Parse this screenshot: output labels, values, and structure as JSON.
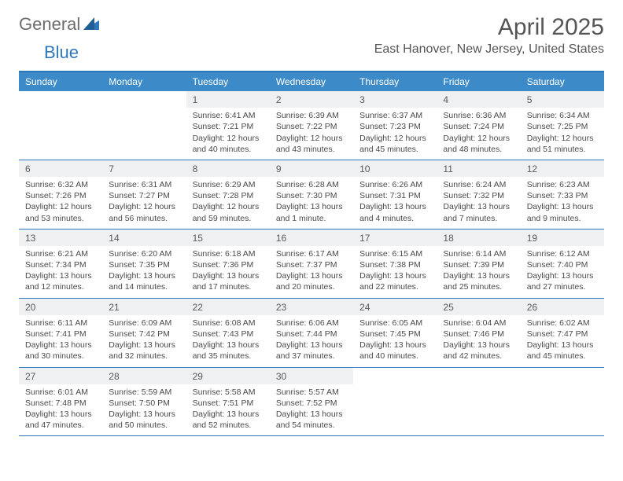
{
  "brand": {
    "part1": "General",
    "part2": "Blue"
  },
  "title": "April 2025",
  "location": "East Hanover, New Jersey, United States",
  "colors": {
    "header_bg": "#3c8ac7",
    "header_border": "#2f77bb",
    "daynum_bg": "#eef0f1",
    "text": "#4a4a4a",
    "title_text": "#555555",
    "logo_gray": "#6d6d6d",
    "logo_blue": "#2f77bb"
  },
  "day_names": [
    "Sunday",
    "Monday",
    "Tuesday",
    "Wednesday",
    "Thursday",
    "Friday",
    "Saturday"
  ],
  "weeks": [
    [
      null,
      null,
      {
        "d": "1",
        "sr": "Sunrise: 6:41 AM",
        "ss": "Sunset: 7:21 PM",
        "dl1": "Daylight: 12 hours",
        "dl2": "and 40 minutes."
      },
      {
        "d": "2",
        "sr": "Sunrise: 6:39 AM",
        "ss": "Sunset: 7:22 PM",
        "dl1": "Daylight: 12 hours",
        "dl2": "and 43 minutes."
      },
      {
        "d": "3",
        "sr": "Sunrise: 6:37 AM",
        "ss": "Sunset: 7:23 PM",
        "dl1": "Daylight: 12 hours",
        "dl2": "and 45 minutes."
      },
      {
        "d": "4",
        "sr": "Sunrise: 6:36 AM",
        "ss": "Sunset: 7:24 PM",
        "dl1": "Daylight: 12 hours",
        "dl2": "and 48 minutes."
      },
      {
        "d": "5",
        "sr": "Sunrise: 6:34 AM",
        "ss": "Sunset: 7:25 PM",
        "dl1": "Daylight: 12 hours",
        "dl2": "and 51 minutes."
      }
    ],
    [
      {
        "d": "6",
        "sr": "Sunrise: 6:32 AM",
        "ss": "Sunset: 7:26 PM",
        "dl1": "Daylight: 12 hours",
        "dl2": "and 53 minutes."
      },
      {
        "d": "7",
        "sr": "Sunrise: 6:31 AM",
        "ss": "Sunset: 7:27 PM",
        "dl1": "Daylight: 12 hours",
        "dl2": "and 56 minutes."
      },
      {
        "d": "8",
        "sr": "Sunrise: 6:29 AM",
        "ss": "Sunset: 7:28 PM",
        "dl1": "Daylight: 12 hours",
        "dl2": "and 59 minutes."
      },
      {
        "d": "9",
        "sr": "Sunrise: 6:28 AM",
        "ss": "Sunset: 7:30 PM",
        "dl1": "Daylight: 13 hours",
        "dl2": "and 1 minute."
      },
      {
        "d": "10",
        "sr": "Sunrise: 6:26 AM",
        "ss": "Sunset: 7:31 PM",
        "dl1": "Daylight: 13 hours",
        "dl2": "and 4 minutes."
      },
      {
        "d": "11",
        "sr": "Sunrise: 6:24 AM",
        "ss": "Sunset: 7:32 PM",
        "dl1": "Daylight: 13 hours",
        "dl2": "and 7 minutes."
      },
      {
        "d": "12",
        "sr": "Sunrise: 6:23 AM",
        "ss": "Sunset: 7:33 PM",
        "dl1": "Daylight: 13 hours",
        "dl2": "and 9 minutes."
      }
    ],
    [
      {
        "d": "13",
        "sr": "Sunrise: 6:21 AM",
        "ss": "Sunset: 7:34 PM",
        "dl1": "Daylight: 13 hours",
        "dl2": "and 12 minutes."
      },
      {
        "d": "14",
        "sr": "Sunrise: 6:20 AM",
        "ss": "Sunset: 7:35 PM",
        "dl1": "Daylight: 13 hours",
        "dl2": "and 14 minutes."
      },
      {
        "d": "15",
        "sr": "Sunrise: 6:18 AM",
        "ss": "Sunset: 7:36 PM",
        "dl1": "Daylight: 13 hours",
        "dl2": "and 17 minutes."
      },
      {
        "d": "16",
        "sr": "Sunrise: 6:17 AM",
        "ss": "Sunset: 7:37 PM",
        "dl1": "Daylight: 13 hours",
        "dl2": "and 20 minutes."
      },
      {
        "d": "17",
        "sr": "Sunrise: 6:15 AM",
        "ss": "Sunset: 7:38 PM",
        "dl1": "Daylight: 13 hours",
        "dl2": "and 22 minutes."
      },
      {
        "d": "18",
        "sr": "Sunrise: 6:14 AM",
        "ss": "Sunset: 7:39 PM",
        "dl1": "Daylight: 13 hours",
        "dl2": "and 25 minutes."
      },
      {
        "d": "19",
        "sr": "Sunrise: 6:12 AM",
        "ss": "Sunset: 7:40 PM",
        "dl1": "Daylight: 13 hours",
        "dl2": "and 27 minutes."
      }
    ],
    [
      {
        "d": "20",
        "sr": "Sunrise: 6:11 AM",
        "ss": "Sunset: 7:41 PM",
        "dl1": "Daylight: 13 hours",
        "dl2": "and 30 minutes."
      },
      {
        "d": "21",
        "sr": "Sunrise: 6:09 AM",
        "ss": "Sunset: 7:42 PM",
        "dl1": "Daylight: 13 hours",
        "dl2": "and 32 minutes."
      },
      {
        "d": "22",
        "sr": "Sunrise: 6:08 AM",
        "ss": "Sunset: 7:43 PM",
        "dl1": "Daylight: 13 hours",
        "dl2": "and 35 minutes."
      },
      {
        "d": "23",
        "sr": "Sunrise: 6:06 AM",
        "ss": "Sunset: 7:44 PM",
        "dl1": "Daylight: 13 hours",
        "dl2": "and 37 minutes."
      },
      {
        "d": "24",
        "sr": "Sunrise: 6:05 AM",
        "ss": "Sunset: 7:45 PM",
        "dl1": "Daylight: 13 hours",
        "dl2": "and 40 minutes."
      },
      {
        "d": "25",
        "sr": "Sunrise: 6:04 AM",
        "ss": "Sunset: 7:46 PM",
        "dl1": "Daylight: 13 hours",
        "dl2": "and 42 minutes."
      },
      {
        "d": "26",
        "sr": "Sunrise: 6:02 AM",
        "ss": "Sunset: 7:47 PM",
        "dl1": "Daylight: 13 hours",
        "dl2": "and 45 minutes."
      }
    ],
    [
      {
        "d": "27",
        "sr": "Sunrise: 6:01 AM",
        "ss": "Sunset: 7:48 PM",
        "dl1": "Daylight: 13 hours",
        "dl2": "and 47 minutes."
      },
      {
        "d": "28",
        "sr": "Sunrise: 5:59 AM",
        "ss": "Sunset: 7:50 PM",
        "dl1": "Daylight: 13 hours",
        "dl2": "and 50 minutes."
      },
      {
        "d": "29",
        "sr": "Sunrise: 5:58 AM",
        "ss": "Sunset: 7:51 PM",
        "dl1": "Daylight: 13 hours",
        "dl2": "and 52 minutes."
      },
      {
        "d": "30",
        "sr": "Sunrise: 5:57 AM",
        "ss": "Sunset: 7:52 PM",
        "dl1": "Daylight: 13 hours",
        "dl2": "and 54 minutes."
      },
      null,
      null,
      null
    ]
  ]
}
